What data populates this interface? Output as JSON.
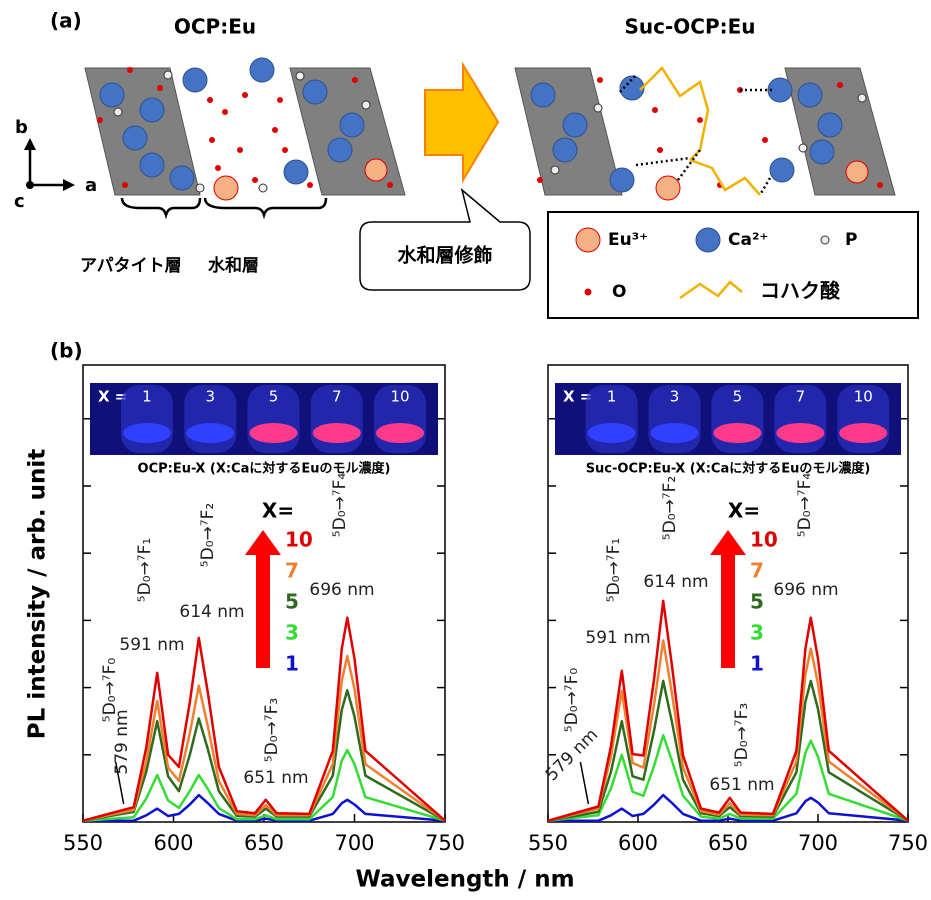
{
  "figure": {
    "panel_a": "(a)",
    "panel_b": "(b)",
    "left_title": "OCP:Eu",
    "right_title": "Suc-OCP:Eu",
    "axis_b": "b",
    "axis_a": "a",
    "axis_c": "c",
    "apatite_layer": "アパタイト層",
    "hydrated_layer": "水和層",
    "modification": "水和層修飾",
    "legend": {
      "eu": "Eu³⁺",
      "ca": "Ca²⁺",
      "p": "P",
      "o": "O",
      "succinic": "コハク酸"
    },
    "xlabel": "Wavelength / nm",
    "ylabel": "PL intensity / arb. unit"
  },
  "chart_data": [
    {
      "type": "line",
      "photo": {
        "prefix": "X =",
        "labels": [
          "1",
          "3",
          "5",
          "7",
          "10"
        ],
        "caption": "OCP:Eu-X (X:Caに対するEuのモル濃度)"
      },
      "legend_title": "X=",
      "annotations": [
        "⁵D₀→⁷F₀",
        "579 nm",
        "⁵D₀→⁷F₁",
        "591 nm",
        "⁵D₀→⁷F₂",
        "614 nm",
        "⁵D₀→⁷F₃",
        "651 nm",
        "⁵D₀→⁷F₄",
        "696 nm"
      ],
      "x": [
        550,
        578,
        585,
        591,
        597,
        603,
        609,
        614,
        619,
        625,
        635,
        645,
        651,
        657,
        675,
        688,
        693,
        696,
        700,
        706,
        750
      ],
      "xlim": [
        550,
        750
      ],
      "xticks": [
        550,
        600,
        650,
        700,
        750
      ],
      "ylim": [
        0,
        6.8
      ],
      "yticks": [
        1,
        2,
        3,
        4,
        5,
        6
      ],
      "series": [
        {
          "name": "10",
          "color": "#e00000",
          "values": [
            0.02,
            0.22,
            1.11,
            2.22,
            1.0,
            0.82,
            1.78,
            2.74,
            1.92,
            0.82,
            0.16,
            0.13,
            0.33,
            0.13,
            0.12,
            1.06,
            2.58,
            3.04,
            2.43,
            1.06,
            0.02
          ]
        },
        {
          "name": "7",
          "color": "#f08030",
          "values": [
            0.02,
            0.18,
            0.9,
            1.8,
            0.81,
            0.61,
            1.32,
            2.03,
            1.42,
            0.61,
            0.12,
            0.1,
            0.25,
            0.1,
            0.1,
            0.86,
            2.1,
            2.47,
            1.98,
            0.86,
            0.02
          ]
        },
        {
          "name": "5",
          "color": "#2e6b1e",
          "values": [
            0.02,
            0.15,
            0.75,
            1.5,
            0.68,
            0.46,
            1.0,
            1.54,
            1.08,
            0.46,
            0.09,
            0.08,
            0.2,
            0.08,
            0.08,
            0.69,
            1.67,
            1.96,
            1.57,
            0.69,
            0.02
          ]
        },
        {
          "name": "3",
          "color": "#33dd33",
          "values": [
            0.02,
            0.07,
            0.35,
            0.7,
            0.32,
            0.21,
            0.46,
            0.7,
            0.49,
            0.21,
            0.04,
            0.04,
            0.1,
            0.04,
            0.04,
            0.37,
            0.91,
            1.07,
            0.86,
            0.37,
            0.02
          ]
        },
        {
          "name": "1",
          "color": "#1010d0",
          "values": [
            0.02,
            0.02,
            0.1,
            0.2,
            0.09,
            0.12,
            0.26,
            0.4,
            0.28,
            0.12,
            0.02,
            0.02,
            0.05,
            0.02,
            0.02,
            0.12,
            0.28,
            0.33,
            0.26,
            0.12,
            0.02
          ]
        }
      ]
    },
    {
      "type": "line",
      "photo": {
        "prefix": "X =",
        "labels": [
          "1",
          "3",
          "5",
          "7",
          "10"
        ],
        "caption": "Suc-OCP:Eu-X (X:Caに対するEuのモル濃度)"
      },
      "legend_title": "X=",
      "annotations": [
        "⁵D₀→⁷F₀",
        "579 nm",
        "⁵D₀→⁷F₁",
        "591 nm",
        "⁵D₀→⁷F₂",
        "614 nm",
        "⁵D₀→⁷F₃",
        "651 nm",
        "⁵D₀→⁷F₄",
        "696 nm"
      ],
      "x": [
        550,
        578,
        585,
        591,
        597,
        603,
        609,
        614,
        619,
        625,
        635,
        645,
        651,
        657,
        675,
        688,
        693,
        696,
        700,
        706,
        750
      ],
      "xlim": [
        550,
        750
      ],
      "xticks": [
        550,
        600,
        650,
        700,
        750
      ],
      "ylim": [
        0,
        6.8
      ],
      "yticks": [
        1,
        2,
        3,
        4,
        5,
        6
      ],
      "series": [
        {
          "name": "10",
          "color": "#e00000",
          "values": [
            0.02,
            0.23,
            1.13,
            2.25,
            1.01,
            0.99,
            2.14,
            3.29,
            2.3,
            0.99,
            0.2,
            0.14,
            0.36,
            0.14,
            0.12,
            1.06,
            2.58,
            3.04,
            2.43,
            1.06,
            0.02
          ]
        },
        {
          "name": "7",
          "color": "#f08030",
          "values": [
            0.02,
            0.2,
            0.98,
            1.95,
            0.88,
            0.81,
            1.76,
            2.7,
            1.89,
            0.81,
            0.16,
            0.11,
            0.28,
            0.11,
            0.1,
            0.9,
            2.19,
            2.58,
            2.06,
            0.9,
            0.02
          ]
        },
        {
          "name": "5",
          "color": "#2e6b1e",
          "values": [
            0.02,
            0.15,
            0.75,
            1.5,
            0.68,
            0.63,
            1.37,
            2.1,
            1.47,
            0.63,
            0.13,
            0.09,
            0.22,
            0.09,
            0.08,
            0.74,
            1.79,
            2.1,
            1.68,
            0.74,
            0.02
          ]
        },
        {
          "name": "3",
          "color": "#33dd33",
          "values": [
            0.02,
            0.1,
            0.5,
            1.0,
            0.45,
            0.39,
            0.84,
            1.29,
            0.9,
            0.39,
            0.08,
            0.05,
            0.12,
            0.05,
            0.05,
            0.42,
            1.03,
            1.21,
            0.97,
            0.42,
            0.02
          ]
        },
        {
          "name": "1",
          "color": "#1010d0",
          "values": [
            0.02,
            0.02,
            0.1,
            0.2,
            0.09,
            0.12,
            0.26,
            0.4,
            0.28,
            0.12,
            0.02,
            0.02,
            0.05,
            0.02,
            0.02,
            0.13,
            0.31,
            0.36,
            0.29,
            0.13,
            0.02
          ]
        }
      ]
    }
  ]
}
